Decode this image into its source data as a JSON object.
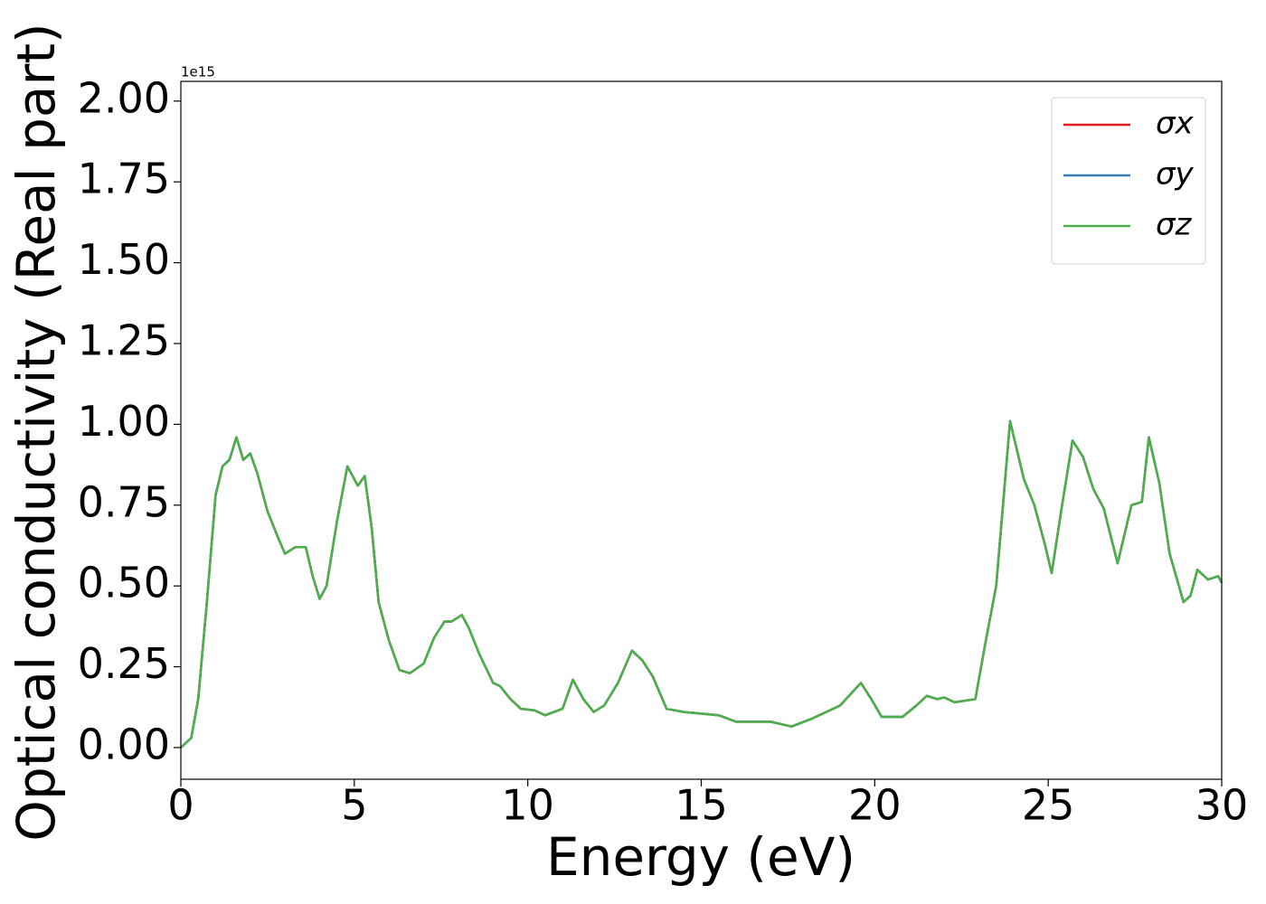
{
  "chart_data": {
    "type": "line",
    "xlabel": "Energy (eV)",
    "ylabel": "Optical conductivity (Real part)",
    "y_offset_text": "1e15",
    "x": [
      0,
      0.3,
      0.5,
      0.75,
      1.0,
      1.2,
      1.4,
      1.6,
      1.8,
      2.0,
      2.2,
      2.5,
      2.8,
      3.0,
      3.3,
      3.6,
      3.8,
      4.0,
      4.2,
      4.5,
      4.8,
      5.0,
      5.1,
      5.3,
      5.5,
      5.7,
      6.0,
      6.3,
      6.6,
      7.0,
      7.3,
      7.6,
      7.8,
      8.1,
      8.3,
      8.6,
      9.0,
      9.2,
      9.5,
      9.8,
      10.2,
      10.5,
      11.0,
      11.3,
      11.6,
      11.9,
      12.2,
      12.6,
      13.0,
      13.3,
      13.6,
      14.0,
      14.5,
      15.0,
      15.5,
      16.0,
      17.0,
      17.6,
      18.2,
      19.0,
      19.6,
      19.9,
      20.2,
      20.8,
      21.2,
      21.5,
      21.8,
      22.0,
      22.3,
      22.9,
      23.2,
      23.5,
      23.9,
      24.3,
      24.6,
      24.9,
      25.1,
      25.4,
      25.7,
      26.0,
      26.3,
      26.6,
      27.0,
      27.4,
      27.7,
      27.9,
      28.2,
      28.5,
      28.9,
      29.1,
      29.3,
      29.6,
      29.9,
      30.0
    ],
    "series": [
      {
        "name": "σx",
        "color": "#e41a1c",
        "values": [
          0.0,
          0.03,
          0.15,
          0.45,
          0.78,
          0.87,
          0.89,
          0.96,
          0.89,
          0.91,
          0.85,
          0.73,
          0.65,
          0.6,
          0.62,
          0.62,
          0.53,
          0.46,
          0.5,
          0.7,
          0.87,
          0.83,
          0.81,
          0.84,
          0.68,
          0.45,
          0.33,
          0.24,
          0.23,
          0.26,
          0.34,
          0.39,
          0.39,
          0.41,
          0.37,
          0.29,
          0.2,
          0.19,
          0.15,
          0.12,
          0.115,
          0.1,
          0.12,
          0.21,
          0.15,
          0.11,
          0.13,
          0.2,
          0.3,
          0.27,
          0.22,
          0.12,
          0.11,
          0.105,
          0.1,
          0.08,
          0.08,
          0.065,
          0.09,
          0.13,
          0.2,
          0.15,
          0.095,
          0.095,
          0.13,
          0.16,
          0.15,
          0.155,
          0.14,
          0.15,
          0.33,
          0.5,
          1.01,
          0.83,
          0.75,
          0.63,
          0.54,
          0.75,
          0.95,
          0.9,
          0.8,
          0.74,
          0.57,
          0.75,
          0.76,
          0.96,
          0.82,
          0.6,
          0.45,
          0.47,
          0.55,
          0.52,
          0.53,
          0.51
        ]
      },
      {
        "name": "σy",
        "color": "#377eb8",
        "values": [
          0.0,
          0.03,
          0.15,
          0.45,
          0.78,
          0.87,
          0.89,
          0.96,
          0.89,
          0.91,
          0.85,
          0.73,
          0.65,
          0.6,
          0.62,
          0.62,
          0.53,
          0.46,
          0.5,
          0.7,
          0.87,
          0.83,
          0.81,
          0.84,
          0.68,
          0.45,
          0.33,
          0.24,
          0.23,
          0.26,
          0.34,
          0.39,
          0.39,
          0.41,
          0.37,
          0.29,
          0.2,
          0.19,
          0.15,
          0.12,
          0.115,
          0.1,
          0.12,
          0.21,
          0.15,
          0.11,
          0.13,
          0.2,
          0.3,
          0.27,
          0.22,
          0.12,
          0.11,
          0.105,
          0.1,
          0.08,
          0.08,
          0.065,
          0.09,
          0.13,
          0.2,
          0.15,
          0.095,
          0.095,
          0.13,
          0.16,
          0.15,
          0.155,
          0.14,
          0.15,
          0.33,
          0.5,
          1.01,
          0.83,
          0.75,
          0.63,
          0.54,
          0.75,
          0.95,
          0.9,
          0.8,
          0.74,
          0.57,
          0.75,
          0.76,
          0.96,
          0.82,
          0.6,
          0.45,
          0.47,
          0.55,
          0.52,
          0.53,
          0.51
        ]
      },
      {
        "name": "σz",
        "color": "#4daf4a",
        "values": [
          0.0,
          0.03,
          0.15,
          0.45,
          0.78,
          0.87,
          0.89,
          0.96,
          0.89,
          0.91,
          0.85,
          0.73,
          0.65,
          0.6,
          0.62,
          0.62,
          0.53,
          0.46,
          0.5,
          0.7,
          0.87,
          0.83,
          0.81,
          0.84,
          0.68,
          0.45,
          0.33,
          0.24,
          0.23,
          0.26,
          0.34,
          0.39,
          0.39,
          0.41,
          0.37,
          0.29,
          0.2,
          0.19,
          0.15,
          0.12,
          0.115,
          0.1,
          0.12,
          0.21,
          0.15,
          0.11,
          0.13,
          0.2,
          0.3,
          0.27,
          0.22,
          0.12,
          0.11,
          0.105,
          0.1,
          0.08,
          0.08,
          0.065,
          0.09,
          0.13,
          0.2,
          0.15,
          0.095,
          0.095,
          0.13,
          0.16,
          0.15,
          0.155,
          0.14,
          0.15,
          0.33,
          0.5,
          1.01,
          0.83,
          0.75,
          0.63,
          0.54,
          0.75,
          0.95,
          0.9,
          0.8,
          0.74,
          0.57,
          0.75,
          0.76,
          0.96,
          0.82,
          0.6,
          0.45,
          0.47,
          0.55,
          0.52,
          0.53,
          0.51
        ]
      }
    ],
    "xlim": [
      0,
      30
    ],
    "xticks": [
      0,
      5,
      10,
      15,
      20,
      25,
      30
    ],
    "ylim": [
      -0.098,
      2.061
    ],
    "yticks": [
      {
        "value": 0,
        "label": "0.00"
      },
      0.25,
      {
        "value": 0.5,
        "label": "0.50"
      },
      0.75,
      {
        "value": 1,
        "label": "1.00"
      },
      1.25,
      {
        "value": 1.5,
        "label": "1.50"
      },
      1.75,
      {
        "value": 2,
        "label": "2.00"
      }
    ],
    "grid": false,
    "legend": "upper right"
  }
}
